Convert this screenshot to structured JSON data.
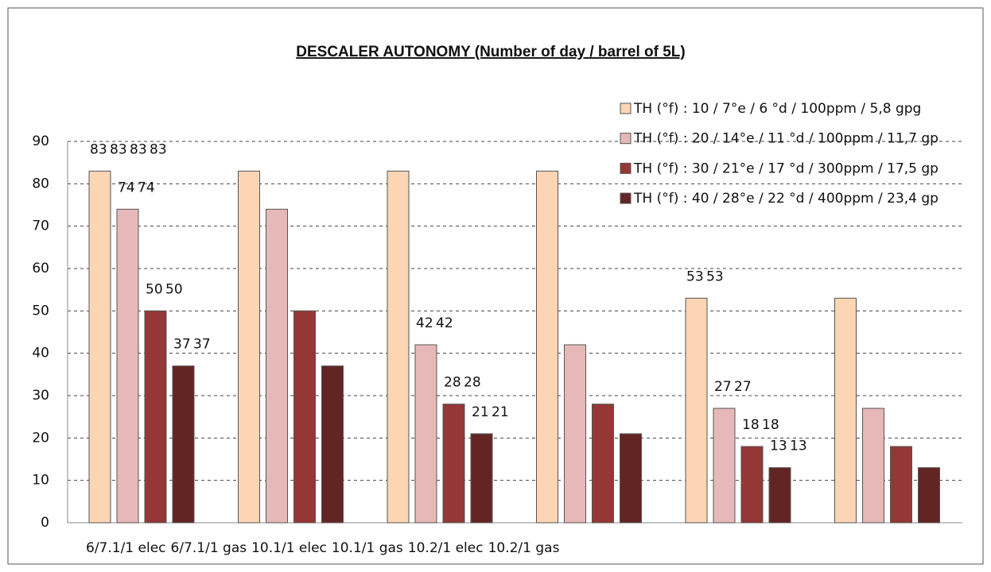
{
  "chart_data": {
    "type": "bar",
    "title": "DESCALER AUTONOMY (Number of day / barrel of 5L)",
    "categories": [
      "6/7.1/1 elec",
      "6/7.1/1 gas",
      "10.1/1 elec",
      "10.1/1 gas",
      "10.2/1 elec",
      "10.2/1 gas"
    ],
    "series": [
      {
        "name": "TH (°f) : 10 / 7°e / 6 °d / 100ppm / 5,8 gpg",
        "color": "#fcd5b4",
        "values": [
          83,
          83,
          83,
          83,
          53,
          53
        ]
      },
      {
        "name": "TH (°f) : 20 / 14°e / 11 °d / 100ppm / 11,7 gp",
        "color": "#e6b9b8",
        "values": [
          74,
          74,
          42,
          42,
          27,
          27
        ]
      },
      {
        "name": "TH (°f) : 30 / 21°e / 17 °d / 300ppm / 17,5 gp",
        "color": "#953735",
        "values": [
          50,
          50,
          28,
          28,
          18,
          18
        ]
      },
      {
        "name": "TH (°f) : 40 / 28°e / 22 °d / 400ppm / 23,4 gp",
        "color": "#632523",
        "values": [
          37,
          37,
          21,
          21,
          13,
          13
        ]
      }
    ],
    "ylim": [
      0,
      90
    ],
    "yticks": [
      0,
      10,
      20,
      30,
      40,
      50,
      60,
      70,
      80,
      90
    ],
    "grid": true,
    "legend": "top-right"
  }
}
